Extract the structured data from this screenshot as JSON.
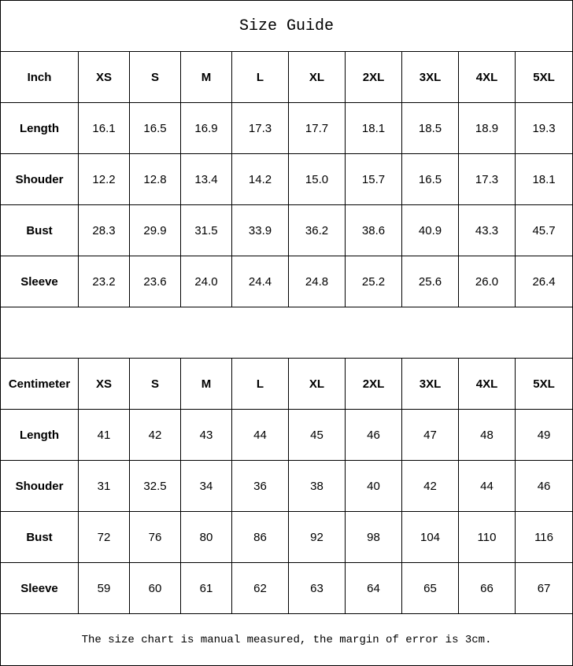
{
  "title": "Size Guide",
  "sizes": [
    "XS",
    "S",
    "M",
    "L",
    "XL",
    "2XL",
    "3XL",
    "4XL",
    "5XL"
  ],
  "inch": {
    "unit_label": "Inch",
    "rows": [
      {
        "label": "Length",
        "values": [
          "16.1",
          "16.5",
          "16.9",
          "17.3",
          "17.7",
          "18.1",
          "18.5",
          "18.9",
          "19.3"
        ]
      },
      {
        "label": "Shouder",
        "values": [
          "12.2",
          "12.8",
          "13.4",
          "14.2",
          "15.0",
          "15.7",
          "16.5",
          "17.3",
          "18.1"
        ]
      },
      {
        "label": "Bust",
        "values": [
          "28.3",
          "29.9",
          "31.5",
          "33.9",
          "36.2",
          "38.6",
          "40.9",
          "43.3",
          "45.7"
        ]
      },
      {
        "label": "Sleeve",
        "values": [
          "23.2",
          "23.6",
          "24.0",
          "24.4",
          "24.8",
          "25.2",
          "25.6",
          "26.0",
          "26.4"
        ]
      }
    ]
  },
  "centimeter": {
    "unit_label": "Centimeter",
    "rows": [
      {
        "label": "Length",
        "values": [
          "41",
          "42",
          "43",
          "44",
          "45",
          "46",
          "47",
          "48",
          "49"
        ]
      },
      {
        "label": "Shouder",
        "values": [
          "31",
          "32.5",
          "34",
          "36",
          "38",
          "40",
          "42",
          "44",
          "46"
        ]
      },
      {
        "label": "Bust",
        "values": [
          "72",
          "76",
          "80",
          "86",
          "92",
          "98",
          "104",
          "110",
          "116"
        ]
      },
      {
        "label": "Sleeve",
        "values": [
          "59",
          "60",
          "61",
          "62",
          "63",
          "64",
          "65",
          "66",
          "67"
        ]
      }
    ]
  },
  "note": "The size chart is manual measured, the margin of error is 3cm."
}
